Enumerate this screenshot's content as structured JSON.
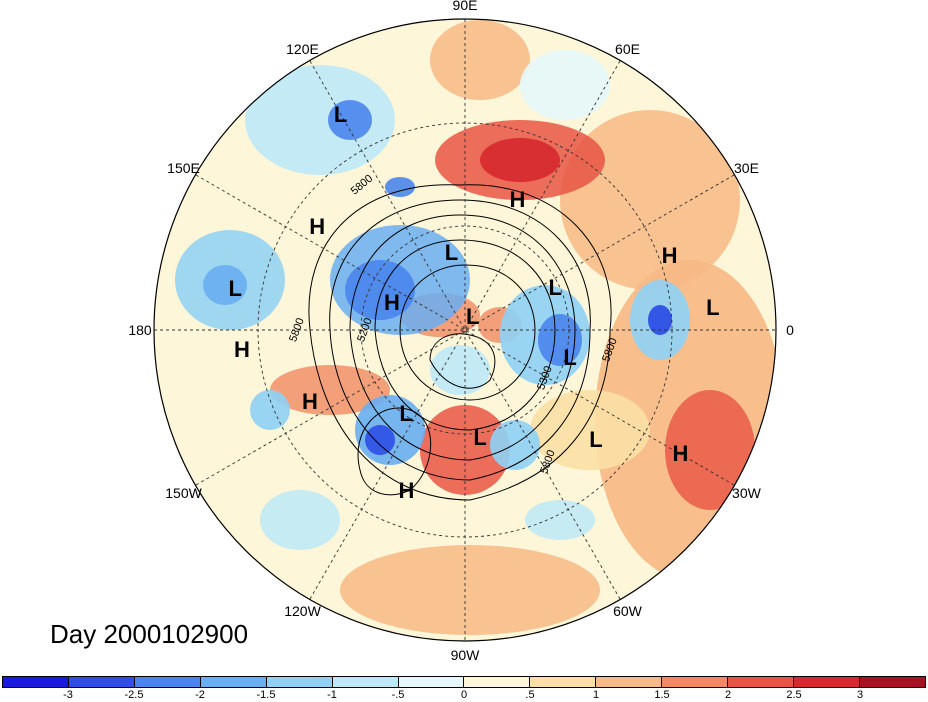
{
  "title": "Day 2000102900",
  "longitude_labels": [
    {
      "text": "90E",
      "angle": 90
    },
    {
      "text": "60E",
      "angle": 60
    },
    {
      "text": "30E",
      "angle": 30
    },
    {
      "text": "0",
      "angle": 0
    },
    {
      "text": "30W",
      "angle": -30
    },
    {
      "text": "60W",
      "angle": -60
    },
    {
      "text": "90W",
      "angle": -90
    },
    {
      "text": "120W",
      "angle": -120
    },
    {
      "text": "150W",
      "angle": -150
    },
    {
      "text": "180",
      "angle": 180
    },
    {
      "text": "150E",
      "angle": 150
    },
    {
      "text": "120E",
      "angle": 120
    }
  ],
  "pressure_systems": [
    {
      "type": "L",
      "lon_deg": -40,
      "colat": 0.55
    },
    {
      "type": "H",
      "lon_deg": 68,
      "colat": 0.45
    },
    {
      "type": "L",
      "lon_deg": 120,
      "colat": 0.8
    },
    {
      "type": "H",
      "lon_deg": 145,
      "colat": 0.58
    },
    {
      "type": "L",
      "lon_deg": 100,
      "colat": 0.25
    },
    {
      "type": "L",
      "lon_deg": 170,
      "colat": 0.75
    },
    {
      "type": "H",
      "lon_deg": -175,
      "colat": 0.72
    },
    {
      "type": "H",
      "lon_deg": -155,
      "colat": 0.55
    },
    {
      "type": "L",
      "lon_deg": -125,
      "colat": 0.33
    },
    {
      "type": "H",
      "lon_deg": -110,
      "colat": 0.55
    },
    {
      "type": "L",
      "lon_deg": -82,
      "colat": 0.35
    },
    {
      "type": "L",
      "lon_deg": 5,
      "colat": 0.8
    },
    {
      "type": "H",
      "lon_deg": 20,
      "colat": 0.7
    },
    {
      "type": "H",
      "lon_deg": -30,
      "colat": 0.8
    },
    {
      "type": "H",
      "lon_deg": 160,
      "colat": 0.25
    },
    {
      "type": "L",
      "lon_deg": 60,
      "colat": 0.05
    },
    {
      "type": "L",
      "lon_deg": 25,
      "colat": 0.32
    },
    {
      "type": "L",
      "lon_deg": -15,
      "colat": 0.35
    }
  ],
  "contour_labels": [
    "5800",
    "5200",
    "5300",
    "5800",
    "5800",
    "5800"
  ],
  "colorbar": {
    "ticks": [
      "-3",
      "-2.5",
      "-2",
      "-1.5",
      "-1",
      "-.5",
      "0",
      ".5",
      "1",
      "1.5",
      "2",
      "2.5",
      "3"
    ],
    "colors": [
      "#1a1adc",
      "#2d4fe6",
      "#4a85ec",
      "#68aef2",
      "#8ed1f5",
      "#bce9f8",
      "#e6f8fb",
      "#fdf6d8",
      "#fbdfa5",
      "#f7b985",
      "#f08a63",
      "#e85544",
      "#d6292d",
      "#a61223"
    ]
  },
  "contour_values": [
    5200,
    5300,
    5800
  ]
}
